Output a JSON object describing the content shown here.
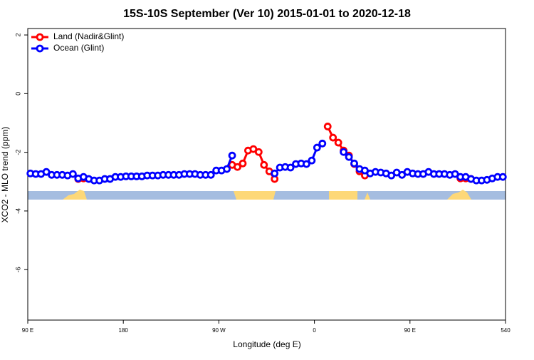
{
  "chart_data": {
    "type": "line",
    "title": "15S-10S September (Ver 10)   2015-01-01 to 2020-12-18",
    "x_label": "Longitude (deg E)",
    "y_label": "XCO2 - MLO trend (ppm)",
    "x": [
      92.5,
      97.5,
      102.5,
      107.5,
      112.5,
      117.5,
      122.5,
      127.5,
      132.5,
      137.5,
      142.5,
      147.5,
      152.5,
      157.5,
      162.5,
      167.5,
      172.5,
      177.5,
      182.5,
      187.5,
      192.5,
      197.5,
      202.5,
      207.5,
      212.5,
      217.5,
      222.5,
      227.5,
      232.5,
      237.5,
      242.5,
      247.5,
      252.5,
      257.5,
      262.5,
      267.5,
      272.5,
      277.5,
      282.5,
      287.5,
      292.5,
      297.5,
      302.5,
      307.5,
      312.5,
      317.5,
      322.5,
      327.5,
      332.5,
      337.5,
      342.5,
      347.5,
      352.5,
      357.5,
      362.5,
      367.5,
      372.5,
      377.5,
      382.5,
      387.5,
      392.5,
      397.5,
      402.5,
      407.5,
      412.5,
      417.5,
      422.5,
      427.5,
      432.5,
      437.5,
      442.5,
      447.5,
      452.5,
      457.5,
      462.5,
      467.5,
      472.5,
      477.5,
      482.5,
      487.5,
      492.5,
      497.5,
      502.5,
      507.5,
      512.5,
      517.5,
      522.5,
      527.5,
      532.5,
      537.5
    ],
    "series": [
      {
        "name": "Land (Nadir&Glint)",
        "color": "#ff0000",
        "values": [
          null,
          null,
          null,
          null,
          null,
          null,
          null,
          null,
          null,
          -2.91,
          -2.89,
          null,
          null,
          null,
          null,
          null,
          null,
          null,
          null,
          null,
          null,
          null,
          null,
          null,
          null,
          null,
          null,
          null,
          null,
          null,
          null,
          null,
          null,
          null,
          null,
          null,
          null,
          null,
          -2.43,
          -2.5,
          -2.38,
          -1.94,
          -1.89,
          -1.99,
          -2.43,
          -2.65,
          -2.91,
          null,
          null,
          null,
          null,
          null,
          null,
          null,
          null,
          null,
          -1.12,
          -1.5,
          -1.67,
          -1.94,
          -2.11,
          -2.4,
          -2.65,
          -2.79,
          null,
          null,
          null,
          null,
          null,
          null,
          null,
          null,
          null,
          null,
          null,
          null,
          null,
          null,
          null,
          null,
          null,
          -2.89,
          -2.89,
          -2.91,
          null,
          null,
          null,
          null,
          null,
          null
        ]
      },
      {
        "name": "Ocean (Glint)",
        "color": "#0000ff",
        "values": [
          -2.72,
          -2.74,
          -2.74,
          -2.67,
          -2.77,
          -2.77,
          -2.77,
          -2.79,
          -2.74,
          -2.89,
          -2.84,
          -2.91,
          -2.96,
          -2.96,
          -2.91,
          -2.91,
          -2.84,
          -2.84,
          -2.82,
          -2.82,
          -2.82,
          -2.82,
          -2.79,
          -2.79,
          -2.79,
          -2.77,
          -2.77,
          -2.77,
          -2.77,
          -2.74,
          -2.74,
          -2.74,
          -2.77,
          -2.77,
          -2.77,
          -2.62,
          -2.62,
          -2.57,
          -2.11,
          null,
          null,
          null,
          null,
          null,
          null,
          null,
          -2.72,
          -2.52,
          -2.5,
          -2.52,
          -2.4,
          -2.38,
          -2.4,
          -2.28,
          -1.84,
          -1.7,
          null,
          null,
          null,
          -1.99,
          -2.16,
          -2.38,
          -2.57,
          -2.62,
          -2.72,
          -2.67,
          -2.69,
          -2.72,
          -2.79,
          -2.69,
          -2.77,
          -2.67,
          -2.72,
          -2.74,
          -2.74,
          -2.67,
          -2.74,
          -2.74,
          -2.74,
          -2.77,
          -2.74,
          -2.84,
          -2.84,
          -2.91,
          -2.96,
          -2.96,
          -2.94,
          -2.89,
          -2.84,
          -2.84
        ]
      }
    ],
    "xlim": [
      90,
      540
    ],
    "xticks": [
      {
        "value": 90,
        "label": "90 E"
      },
      180,
      {
        "value": 270,
        "label": "90 W"
      },
      {
        "value": 360,
        "label": "0"
      },
      {
        "value": 450,
        "label": "90 E"
      },
      540
    ],
    "ylim": [
      -7.72,
      2.22
    ],
    "yticks": [
      2,
      0,
      -2,
      -4,
      -6
    ],
    "legend": "top-left"
  }
}
